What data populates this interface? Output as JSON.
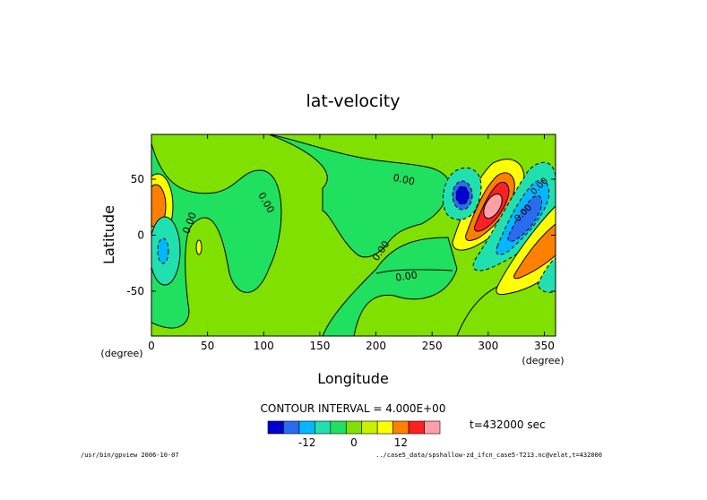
{
  "chart_data": {
    "type": "contour",
    "title": "lat-velocity",
    "xlabel": "Longitude",
    "ylabel": "Latitude",
    "x_unit": "(degree)",
    "y_unit": "(degree)",
    "xlim": [
      0,
      360
    ],
    "ylim": [
      -90,
      90
    ],
    "x_ticks": [
      0,
      50,
      100,
      150,
      200,
      250,
      300,
      350
    ],
    "y_ticks": [
      -50,
      0,
      50
    ],
    "contour_interval_label": "CONTOUR INTERVAL = 4.000E+00",
    "time_label": "t=432000 sec",
    "contour_labels": [
      "0.00",
      "0.00",
      "0.00",
      "0.00",
      "0.00",
      "0.00",
      "0.00"
    ],
    "colorbar": {
      "colors": [
        "#0000d0",
        "#2a6cf0",
        "#00b8ff",
        "#20e0b0",
        "#20e060",
        "#80e000",
        "#c8f000",
        "#ffff00",
        "#ff8000",
        "#ff2020",
        "#ffa0a8"
      ],
      "tick_values": [
        -12,
        0,
        12
      ]
    },
    "footer_left": "/usr/bin/gpview  2006-10-07",
    "footer_right": "../case5_data/spshallow-zd_ifcn_case5-T213.nc@velat,t=432000"
  }
}
